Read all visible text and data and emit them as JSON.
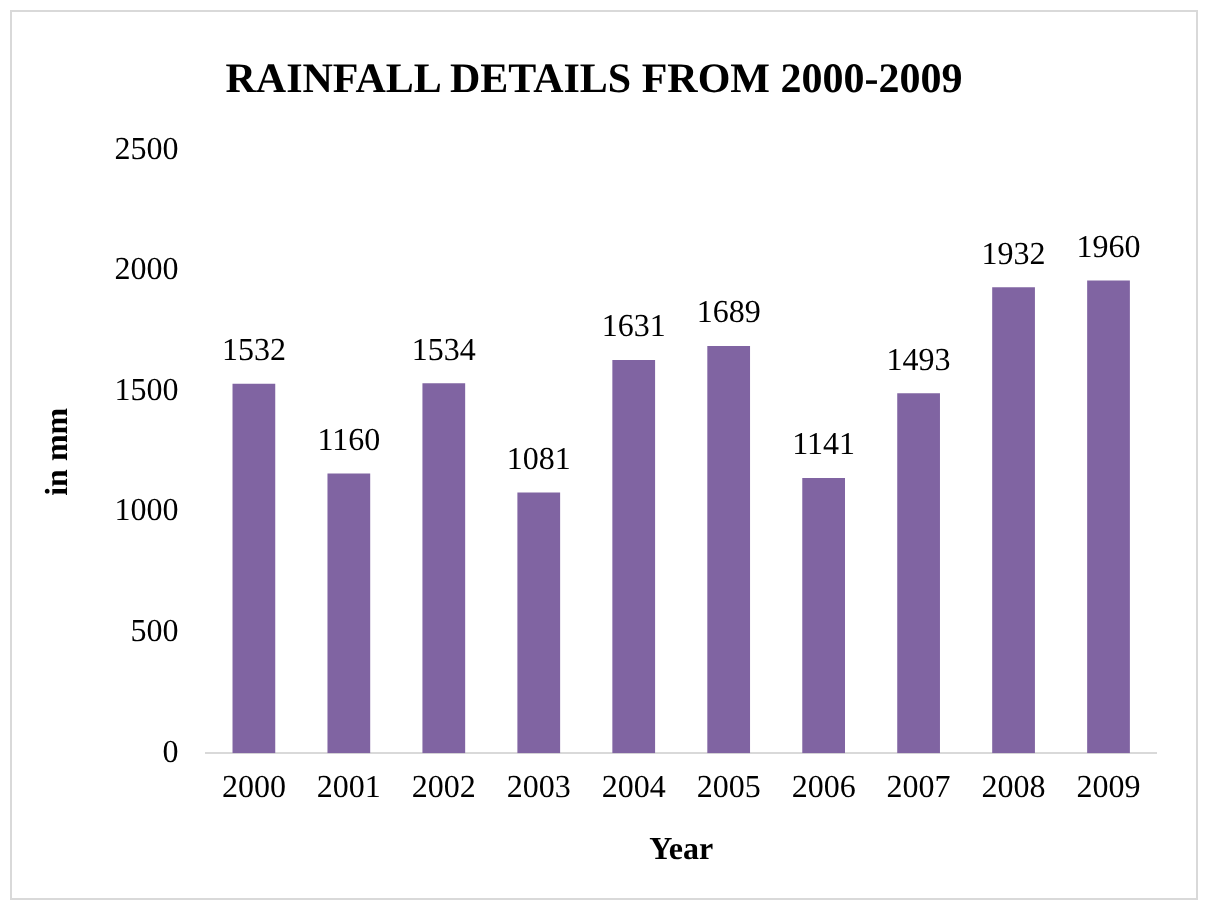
{
  "chart_data": {
    "type": "bar",
    "title": "RAINFALL DETAILS FROM 2000-2009",
    "xlabel": "Year",
    "ylabel": "in mm",
    "categories": [
      "2000",
      "2001",
      "2002",
      "2003",
      "2004",
      "2005",
      "2006",
      "2007",
      "2008",
      "2009"
    ],
    "values": [
      1532,
      1160,
      1534,
      1081,
      1631,
      1689,
      1141,
      1493,
      1932,
      1960
    ],
    "color": "#8064a2",
    "ylim": [
      0,
      2500
    ],
    "yticks": [
      0,
      500,
      1000,
      1500,
      2000,
      2500
    ],
    "grid": false,
    "legend": false,
    "data_labels": true
  }
}
